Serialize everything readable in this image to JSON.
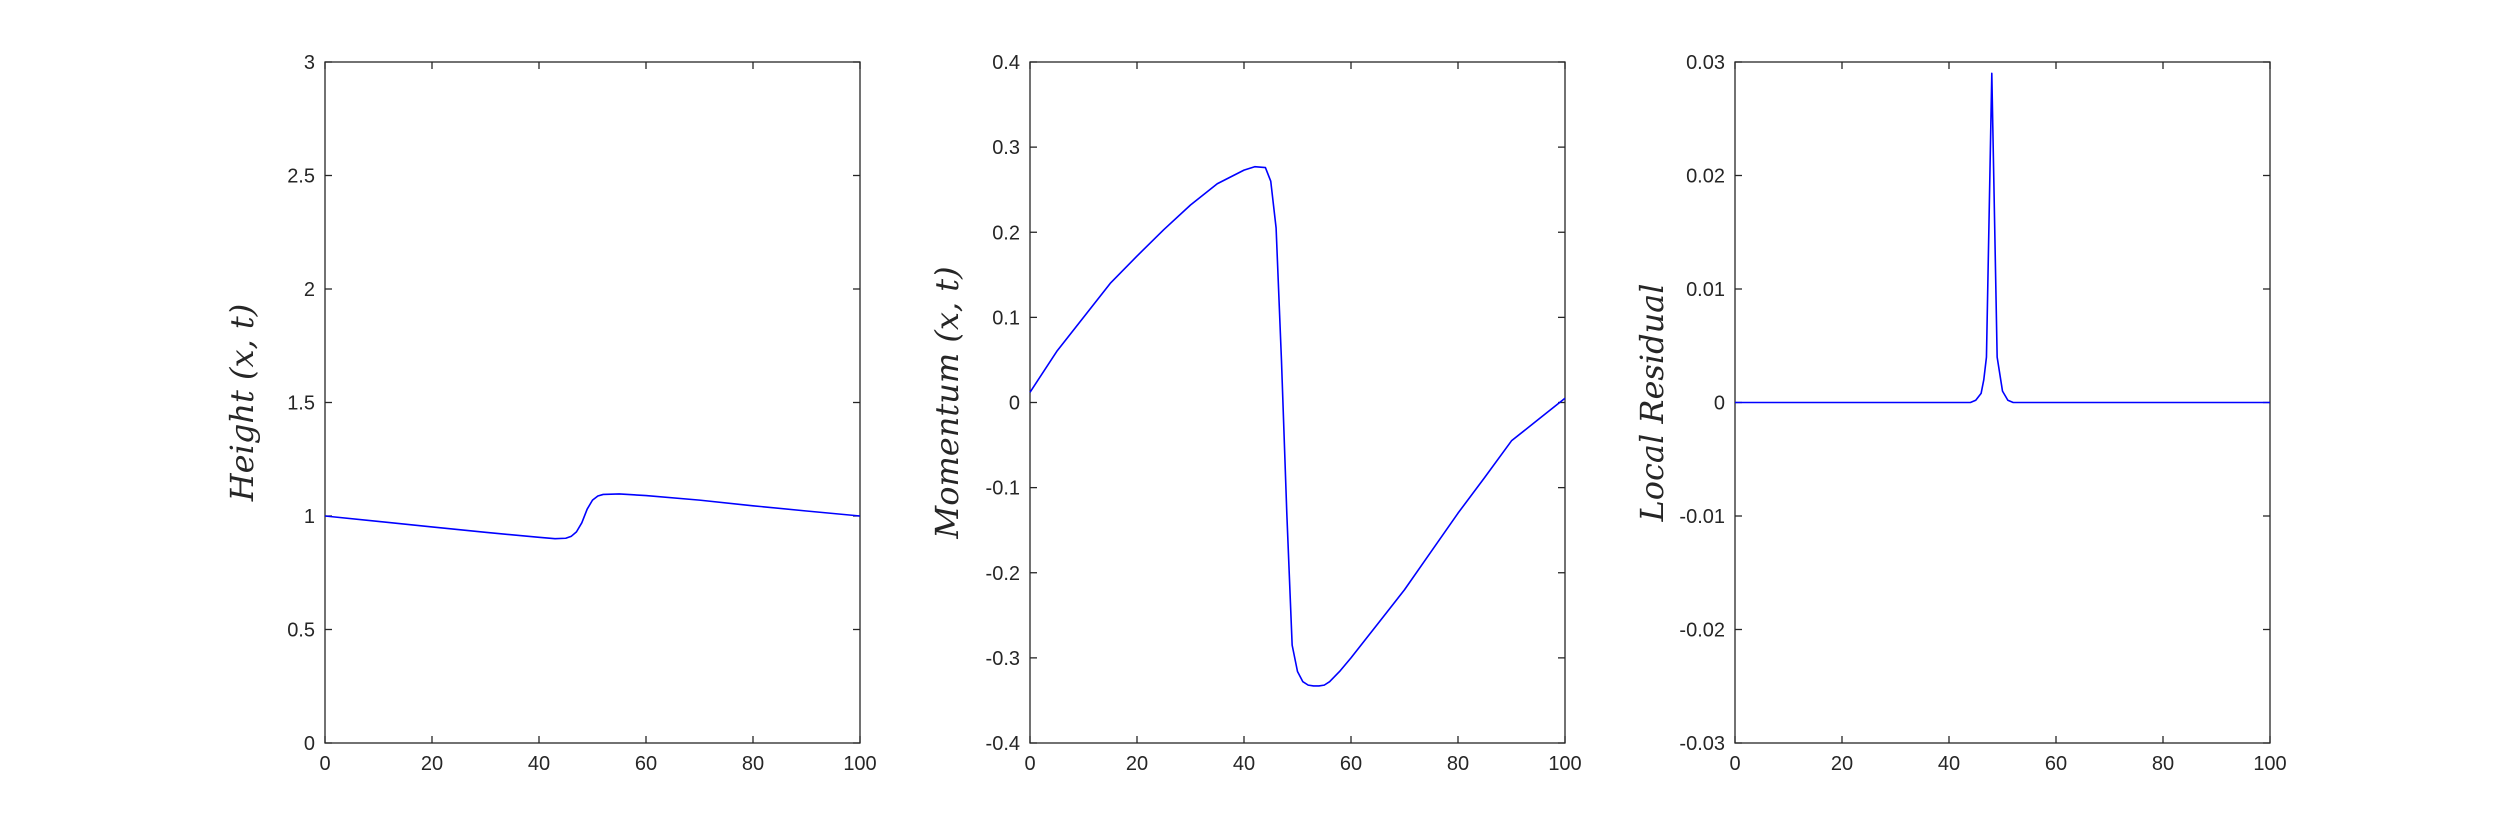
{
  "chart_data": [
    {
      "type": "line",
      "title": "",
      "xlabel": "",
      "ylabel": "Height (x, t)",
      "xlim": [
        0,
        100
      ],
      "ylim": [
        0,
        3
      ],
      "x_ticks": [
        0,
        20,
        40,
        60,
        80,
        100
      ],
      "y_ticks": [
        0,
        0.5,
        1,
        1.5,
        2,
        2.5,
        3
      ],
      "y_tick_labels": [
        "0",
        "0.5",
        "1",
        "1.5",
        "2",
        "2.5",
        "3"
      ],
      "grid": false,
      "line_color": "#0000ff",
      "series": [
        {
          "x": [
            0,
            10,
            20,
            30,
            40,
            43,
            45,
            46,
            47,
            48,
            49,
            50,
            51,
            52,
            55,
            60,
            70,
            80,
            90,
            100
          ],
          "y": [
            1.0,
            0.976,
            0.952,
            0.928,
            0.906,
            0.9,
            0.902,
            0.91,
            0.93,
            0.97,
            1.03,
            1.07,
            1.088,
            1.095,
            1.097,
            1.09,
            1.07,
            1.045,
            1.022,
            1.0
          ]
        }
      ]
    },
    {
      "type": "line",
      "title": "",
      "xlabel": "",
      "ylabel": "Momentum (x, t)",
      "xlim": [
        0,
        100
      ],
      "ylim": [
        -0.4,
        0.4
      ],
      "x_ticks": [
        0,
        20,
        40,
        60,
        80,
        100
      ],
      "y_ticks": [
        -0.4,
        -0.3,
        -0.2,
        -0.1,
        0,
        0.1,
        0.2,
        0.3,
        0.4
      ],
      "y_tick_labels": [
        "-0.4",
        "-0.3",
        "-0.2",
        "-0.1",
        "0",
        "0.1",
        "0.2",
        "0.3",
        "0.4"
      ],
      "grid": false,
      "line_color": "#0000ff",
      "series": [
        {
          "x": [
            0,
            5,
            10,
            15,
            20,
            25,
            30,
            35,
            40,
            42,
            44,
            45,
            46,
            47,
            48,
            49,
            50,
            51,
            52,
            53,
            54,
            55,
            56,
            58,
            60,
            65,
            70,
            75,
            80,
            85,
            90,
            95,
            100
          ],
          "y": [
            0.012,
            0.06,
            0.1,
            0.14,
            0.172,
            0.203,
            0.232,
            0.257,
            0.273,
            0.277,
            0.276,
            0.26,
            0.205,
            0.05,
            -0.13,
            -0.285,
            -0.316,
            -0.328,
            -0.332,
            -0.333,
            -0.333,
            -0.332,
            -0.328,
            -0.315,
            -0.3,
            -0.26,
            -0.22,
            -0.175,
            -0.13,
            -0.088,
            -0.045,
            -0.02,
            0.005
          ]
        }
      ]
    },
    {
      "type": "line",
      "title": "",
      "xlabel": "",
      "ylabel": "Local Residual",
      "xlim": [
        0,
        100
      ],
      "ylim": [
        -0.03,
        0.03
      ],
      "x_ticks": [
        0,
        20,
        40,
        60,
        80,
        100
      ],
      "y_ticks": [
        -0.03,
        -0.02,
        -0.01,
        0,
        0.01,
        0.02,
        0.03
      ],
      "y_tick_labels": [
        "-0.03",
        "-0.02",
        "-0.01",
        "0",
        "0.01",
        "0.02",
        "0.03"
      ],
      "grid": false,
      "line_color": "#0000ff",
      "series": [
        {
          "x": [
            0,
            44,
            45,
            46,
            46.5,
            47,
            48,
            49,
            49.5,
            50,
            51,
            52,
            100
          ],
          "y": [
            0,
            0,
            0.0002,
            0.0008,
            0.002,
            0.004,
            0.029,
            0.004,
            0.0025,
            0.001,
            0.0002,
            0,
            0
          ]
        }
      ]
    }
  ]
}
